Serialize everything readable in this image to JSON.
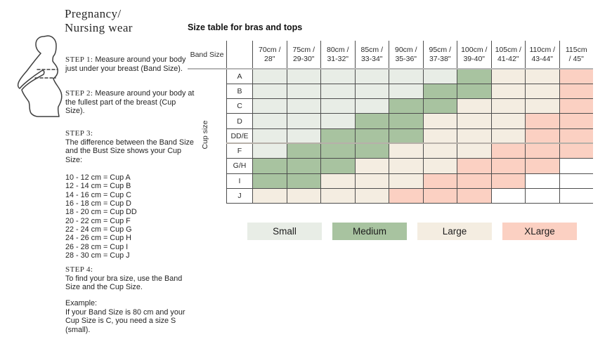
{
  "header": {
    "title_line1": "Pregnancy/",
    "title_line2": "Nursing wear"
  },
  "icons": {
    "figure": "pregnant-woman-silhouette"
  },
  "sidebar": {
    "steps": [
      {
        "label": "STEP 1:",
        "text": "Measure around your body just under your breast (Band Size)."
      },
      {
        "label": "STEP 2:",
        "text": "Measure around your body at the fullest part of the breast (Cup Size)."
      },
      {
        "label": "STEP 3:",
        "text": "The difference between the Band Size and the Bust Size shows your Cup Size:"
      }
    ],
    "cup_conversions": [
      "10 - 12 cm = Cup A",
      "12 - 14 cm = Cup B",
      "14 - 16 cm = Cup C",
      "16 - 18 cm = Cup D",
      "18 - 20 cm = Cup DD",
      "20 - 22 cm = Cup F",
      "22 - 24 cm = Cup G",
      "24 - 26 cm = Cup H",
      "26 - 28 cm = Cup I",
      "28 - 30 cm = Cup J"
    ],
    "step4": {
      "label": "STEP 4:",
      "text": "To find your bra size, use the Band Size and the Cup Size."
    },
    "example": {
      "label": "Example:",
      "text": "If your Band Size is 80 cm and your Cup Size is C, you need a size S (small)."
    }
  },
  "table": {
    "title": "Size table for bras and tops",
    "corner_label": "Band Size",
    "cup_axis_label": "Cup size",
    "band_sizes": [
      {
        "line1": "70cm /",
        "line2": "28\""
      },
      {
        "line1": "75cm /",
        "line2": "29-30\""
      },
      {
        "line1": "80cm /",
        "line2": "31-32\""
      },
      {
        "line1": "85cm /",
        "line2": "33-34\""
      },
      {
        "line1": "90cm /",
        "line2": "35-36\""
      },
      {
        "line1": "95cm /",
        "line2": "37-38\""
      },
      {
        "line1": "100cm /",
        "line2": "39-40\""
      },
      {
        "line1": "105cm /",
        "line2": "41-42\""
      },
      {
        "line1": "110cm /",
        "line2": "43-44\""
      },
      {
        "line1": "115cm",
        "line2": "/ 45\""
      }
    ],
    "thick_divider_above_cup": "F",
    "rows": [
      {
        "cup": "A",
        "cells": [
          "S",
          "S",
          "S",
          "S",
          "S",
          "S",
          "M",
          "L",
          "L",
          "XL"
        ]
      },
      {
        "cup": "B",
        "cells": [
          "S",
          "S",
          "S",
          "S",
          "S",
          "M",
          "M",
          "L",
          "L",
          "XL"
        ]
      },
      {
        "cup": "C",
        "cells": [
          "S",
          "S",
          "S",
          "S",
          "M",
          "M",
          "L",
          "L",
          "L",
          "XL"
        ]
      },
      {
        "cup": "D",
        "cells": [
          "S",
          "S",
          "S",
          "M",
          "M",
          "L",
          "L",
          "L",
          "XL",
          "XL"
        ]
      },
      {
        "cup": "DD/E",
        "cells": [
          "S",
          "S",
          "M",
          "M",
          "M",
          "L",
          "L",
          "L",
          "XL",
          "XL"
        ]
      },
      {
        "cup": "F",
        "cells": [
          "S",
          "M",
          "M",
          "M",
          "L",
          "L",
          "L",
          "XL",
          "XL",
          "XL"
        ]
      },
      {
        "cup": "G/H",
        "cells": [
          "M",
          "M",
          "M",
          "L",
          "L",
          "L",
          "XL",
          "XL",
          "XL",
          ""
        ]
      },
      {
        "cup": "I",
        "cells": [
          "M",
          "M",
          "L",
          "L",
          "L",
          "XL",
          "XL",
          "XL",
          "",
          ""
        ]
      },
      {
        "cup": "J",
        "cells": [
          "L",
          "L",
          "L",
          "L",
          "XL",
          "XL",
          "XL",
          "",
          "",
          ""
        ]
      }
    ],
    "colors": {
      "S": "#e8ede6",
      "M": "#a8c3a0",
      "L": "#f4ede1",
      "XL": "#fbd0c2"
    },
    "legend": [
      {
        "key": "S",
        "label": "Small"
      },
      {
        "key": "M",
        "label": "Medium"
      },
      {
        "key": "L",
        "label": "Large"
      },
      {
        "key": "XL",
        "label": "XLarge"
      }
    ]
  },
  "chart_data": {
    "type": "heatmap",
    "title": "Size table for bras and tops",
    "x_categories": [
      "70cm / 28\"",
      "75cm / 29-30\"",
      "80cm / 31-32\"",
      "85cm / 33-34\"",
      "90cm / 35-36\"",
      "95cm / 37-38\"",
      "100cm / 39-40\"",
      "105cm / 41-42\"",
      "110cm / 43-44\"",
      "115cm / 45\""
    ],
    "y_categories": [
      "A",
      "B",
      "C",
      "D",
      "DD/E",
      "F",
      "G/H",
      "I",
      "J"
    ],
    "xlabel": "Band Size",
    "ylabel": "Cup size",
    "legend_position": "bottom",
    "values": [
      [
        "S",
        "S",
        "S",
        "S",
        "S",
        "S",
        "M",
        "L",
        "L",
        "XL"
      ],
      [
        "S",
        "S",
        "S",
        "S",
        "S",
        "M",
        "M",
        "L",
        "L",
        "XL"
      ],
      [
        "S",
        "S",
        "S",
        "S",
        "M",
        "M",
        "L",
        "L",
        "L",
        "XL"
      ],
      [
        "S",
        "S",
        "S",
        "M",
        "M",
        "L",
        "L",
        "L",
        "XL",
        "XL"
      ],
      [
        "S",
        "S",
        "M",
        "M",
        "M",
        "L",
        "L",
        "L",
        "XL",
        "XL"
      ],
      [
        "S",
        "M",
        "M",
        "M",
        "L",
        "L",
        "L",
        "XL",
        "XL",
        "XL"
      ],
      [
        "M",
        "M",
        "M",
        "L",
        "L",
        "L",
        "XL",
        "XL",
        "XL",
        ""
      ],
      [
        "M",
        "M",
        "L",
        "L",
        "L",
        "XL",
        "XL",
        "XL",
        "",
        ""
      ],
      [
        "L",
        "L",
        "L",
        "L",
        "XL",
        "XL",
        "XL",
        "",
        "",
        ""
      ]
    ]
  }
}
